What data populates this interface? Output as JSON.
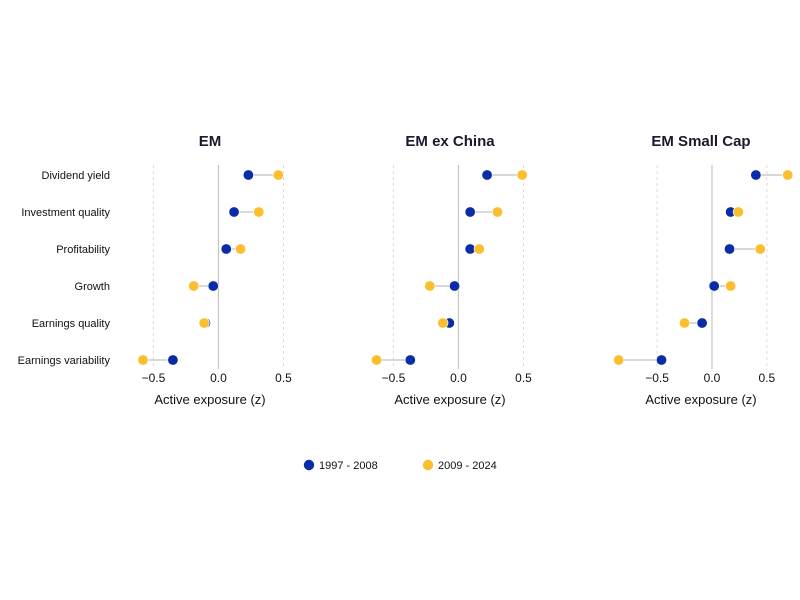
{
  "chart_data": {
    "type": "scatter",
    "subtype": "dumbbell",
    "grid": "vertical dashed at ticks",
    "legend_position": "bottom-center",
    "categories": [
      "Dividend yield",
      "Investment quality",
      "Profitability",
      "Growth",
      "Earnings quality",
      "Earnings variability"
    ],
    "series_meta": [
      {
        "name": "1997 - 2008",
        "color": "#0a2ca6"
      },
      {
        "name": "2009 - 2024",
        "color": "#fbbf2d"
      }
    ],
    "connector_color": "#cccccc",
    "panels": [
      {
        "title": "EM",
        "xlabel": "Active exposure (z)",
        "xlim": [
          -0.68,
          0.55
        ],
        "xticks": [
          -0.5,
          0,
          0.5
        ],
        "xtick_labels": [
          "−0.5",
          "0.0",
          "0.5"
        ],
        "series": [
          {
            "name": "1997 - 2008",
            "values": [
              0.23,
              0.12,
              0.06,
              -0.04,
              -0.1,
              -0.35
            ]
          },
          {
            "name": "2009 - 2024",
            "values": [
              0.46,
              0.31,
              0.17,
              -0.19,
              -0.11,
              -0.58
            ]
          }
        ]
      },
      {
        "title": "EM ex China",
        "xlabel": "Active exposure (z)",
        "xlim": [
          -0.68,
          0.55
        ],
        "xticks": [
          -0.5,
          0,
          0.5
        ],
        "xtick_labels": [
          "−0.5",
          "0.0",
          "0.5"
        ],
        "series": [
          {
            "name": "1997 - 2008",
            "values": [
              0.22,
              0.09,
              0.09,
              -0.03,
              -0.07,
              -0.37
            ]
          },
          {
            "name": "2009 - 2024",
            "values": [
              0.49,
              0.3,
              0.16,
              -0.22,
              -0.12,
              -0.63
            ]
          }
        ]
      },
      {
        "title": "EM Small Cap",
        "xlabel": "Active exposure (z)",
        "xlim": [
          -0.92,
          0.72
        ],
        "xticks": [
          -0.5,
          0,
          0.5
        ],
        "xtick_labels": [
          "−0.5",
          "0.0",
          "0.5"
        ],
        "series": [
          {
            "name": "1997 - 2008",
            "values": [
              0.4,
              0.17,
              0.16,
              0.02,
              -0.09,
              -0.46
            ]
          },
          {
            "name": "2009 - 2024",
            "values": [
              0.69,
              0.24,
              0.44,
              0.17,
              -0.25,
              -0.85
            ]
          }
        ]
      }
    ]
  }
}
